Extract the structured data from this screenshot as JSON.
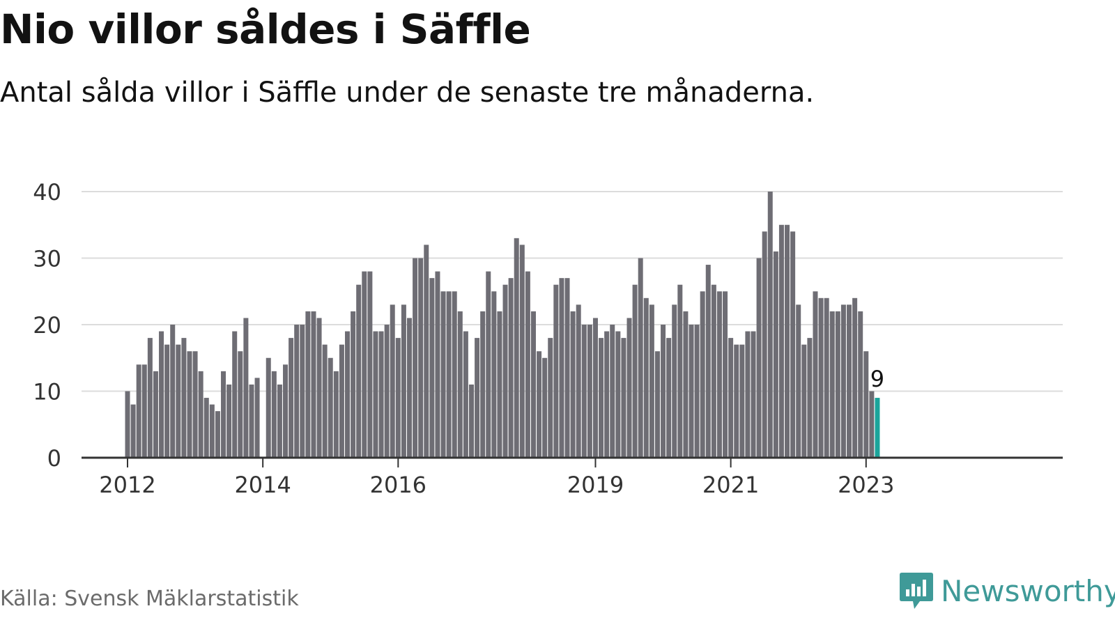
{
  "title": "Nio villor såldes i Säffle",
  "subtitle": "Antal sålda villor i Säffle under de senaste tre månaderna.",
  "source": "Källa: Svensk Mäklarstatistik",
  "brand": "Newsworthy",
  "colors": {
    "bar": "#6e6d74",
    "highlight": "#1ba49b",
    "grid": "#dcdcdc",
    "axis": "#333333",
    "brand": "#3f9a98"
  },
  "chart_data": {
    "type": "bar",
    "title": "Nio villor såldes i Säffle",
    "subtitle": "Antal sålda villor i Säffle under de senaste tre månaderna.",
    "xlabel": "",
    "ylabel": "",
    "ylim": [
      0,
      40
    ],
    "yticks": [
      0,
      10,
      20,
      30,
      40
    ],
    "xticks": [
      "2012",
      "2014",
      "2016",
      "2019",
      "2021",
      "2023"
    ],
    "grid": true,
    "highlight_label": "9",
    "series": [
      {
        "values": [
          10,
          8,
          14,
          14,
          18,
          13,
          19,
          17,
          20,
          17,
          18,
          16,
          16,
          13,
          9,
          8,
          7,
          13,
          11,
          19,
          16,
          21,
          11,
          12,
          0,
          15,
          13,
          11,
          14,
          18,
          20,
          20,
          22,
          22,
          21,
          17,
          15,
          13,
          17,
          19,
          22,
          26,
          28,
          28,
          19,
          19,
          20,
          23,
          18,
          23,
          21,
          30,
          30,
          32,
          27,
          28,
          25,
          25,
          25,
          22,
          19,
          11,
          18,
          22,
          28,
          25,
          22,
          26,
          27,
          33,
          32,
          28,
          22,
          16,
          15,
          18,
          26,
          27,
          27,
          22,
          23,
          20,
          20,
          21,
          18,
          19,
          20,
          19,
          18,
          21,
          26,
          30,
          24,
          23,
          16,
          20,
          18,
          23,
          26,
          22,
          20,
          20,
          25,
          29,
          26,
          25,
          25,
          18,
          17,
          17,
          19,
          19,
          30,
          34,
          40,
          31,
          35,
          35,
          34,
          23,
          17,
          18,
          25,
          24,
          24,
          22,
          22,
          23,
          23,
          24,
          22,
          16,
          10,
          9
        ]
      }
    ]
  }
}
